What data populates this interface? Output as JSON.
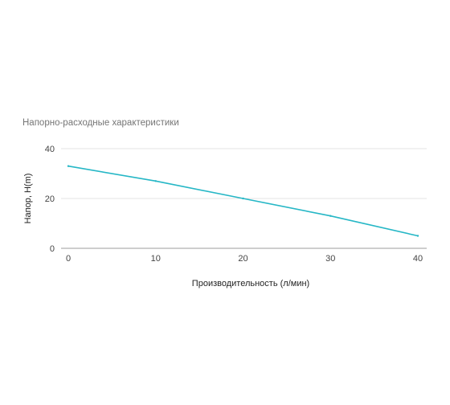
{
  "chart_data": {
    "type": "line",
    "title": "Напорно-расходные характеристики",
    "xlabel": "Производительность (л/мин)",
    "ylabel": "Напор, H(m)",
    "xlim": [
      0,
      40
    ],
    "ylim": [
      0,
      40
    ],
    "x_ticks": [
      0,
      10,
      20,
      30,
      40
    ],
    "y_ticks": [
      0,
      20,
      40
    ],
    "grid": true,
    "legend": "none",
    "series": [
      {
        "color": "#26b7c6",
        "x": [
          0,
          10,
          20,
          30,
          40
        ],
        "y": [
          33,
          27,
          20,
          13,
          5
        ]
      }
    ]
  }
}
